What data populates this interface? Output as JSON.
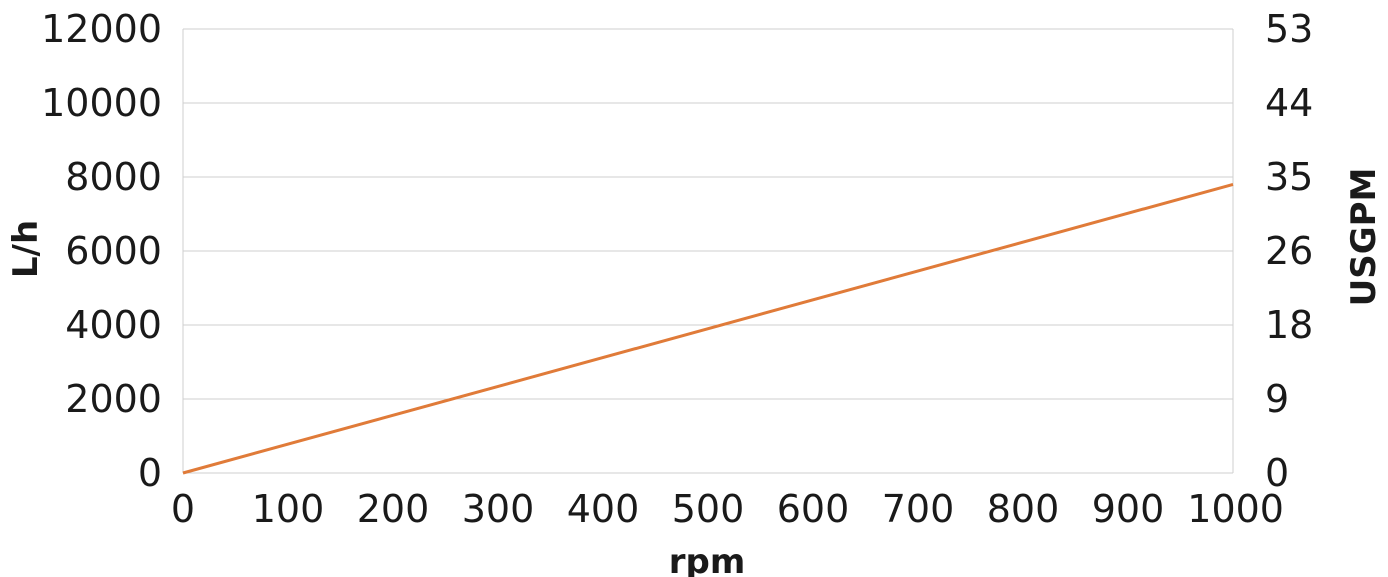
{
  "chart_data": {
    "type": "line",
    "xlabel": "rpm",
    "ylabel": "L/h",
    "y2label": "USGPM",
    "xlim": [
      0,
      1000
    ],
    "ylim": [
      0,
      12000
    ],
    "x_ticks": [
      "0",
      "100",
      "200",
      "300",
      "400",
      "500",
      "600",
      "700",
      "800",
      "900",
      "1000"
    ],
    "y_ticks": [
      "0",
      "2000",
      "4000",
      "6000",
      "8000",
      "10000",
      "12000"
    ],
    "y2_ticks": [
      "0",
      "9",
      "18",
      "26",
      "35",
      "44",
      "53"
    ],
    "grid": true,
    "series": [
      {
        "color": "#e07b39",
        "x": [
          0,
          1000
        ],
        "y": [
          0,
          7800
        ]
      }
    ]
  }
}
